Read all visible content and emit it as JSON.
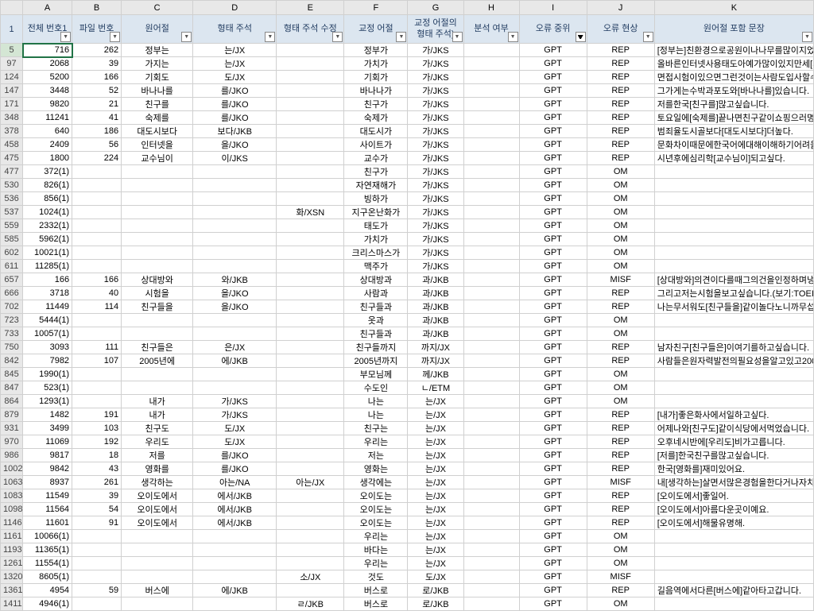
{
  "columns": {
    "letters": [
      "",
      "A",
      "B",
      "C",
      "D",
      "E",
      "F",
      "G",
      "H",
      "I",
      "J",
      "K"
    ],
    "widths": [
      28,
      62,
      62,
      90,
      105,
      85,
      80,
      70,
      70,
      85,
      85,
      200
    ],
    "headers": [
      "",
      "전체 번호1",
      "파일 번호",
      "원어절",
      "형태 주석",
      "형태 주석 수정",
      "교정 어절",
      "교정 어절의\n형태 주석)",
      "분석 여부",
      "오류 중위",
      "오류 현상",
      "원어절 포함 문장"
    ]
  },
  "selected_row": "5",
  "rows": [
    {
      "n": "1",
      "hdr": true
    },
    {
      "n": "5",
      "a": "716",
      "b": "262",
      "c": "정부는",
      "d": "는/JX",
      "f": "정부가",
      "g": "가/JKS",
      "i": "GPT",
      "j": "REP",
      "k": "[정부는]친환경으로공원이나나무를많이지었지만들이"
    },
    {
      "n": "97",
      "a": "2068",
      "b": "39",
      "c": "가지는",
      "d": "는/JX",
      "f": "가치가",
      "g": "가/JKS",
      "i": "GPT",
      "j": "REP",
      "k": "올바른인터넷사용태도아예가많이있지만세[가지는]특히"
    },
    {
      "n": "124",
      "a": "5200",
      "b": "166",
      "c": "기회도",
      "d": "도/JX",
      "f": "기회가",
      "g": "가/JKS",
      "i": "GPT",
      "j": "REP",
      "k": "면접시험이있으면그런것이는사람도입사할수없지만태"
    },
    {
      "n": "147",
      "a": "3448",
      "b": "52",
      "c": "바나나를",
      "d": "를/JKO",
      "f": "바나나가",
      "g": "가/JKS",
      "i": "GPT",
      "j": "REP",
      "k": "그가게는수박과포도와[바나나를]있습니다."
    },
    {
      "n": "171",
      "a": "9820",
      "b": "21",
      "c": "친구를",
      "d": "를/JKO",
      "f": "친구가",
      "g": "가/JKS",
      "i": "GPT",
      "j": "REP",
      "k": "저를한국[친구를]많고싶습니다."
    },
    {
      "n": "348",
      "a": "11241",
      "b": "41",
      "c": "숙제를",
      "d": "를/JKO",
      "f": "숙제가",
      "g": "가/JKS",
      "i": "GPT",
      "j": "REP",
      "k": "토요일에[숙제를]끝나면친구같이쇼핑으러명동에갑니다"
    },
    {
      "n": "378",
      "a": "640",
      "b": "186",
      "c": "대도시보다",
      "d": "보다/JKB",
      "f": "대도시가",
      "g": "가/JKS",
      "i": "GPT",
      "j": "REP",
      "k": "범죄율도시골보다[대도시보다]더높다."
    },
    {
      "n": "458",
      "a": "2409",
      "b": "56",
      "c": "인터넷을",
      "d": "을/JKO",
      "f": "사이트가",
      "g": "가/JKS",
      "i": "GPT",
      "j": "REP",
      "k": "문화차이때문에한국어에대해이해하기어려울때네비어"
    },
    {
      "n": "475",
      "a": "1800",
      "b": "224",
      "c": "교수님이",
      "d": "이/JKS",
      "f": "교수가",
      "g": "가/JKS",
      "i": "GPT",
      "j": "REP",
      "k": "시년후에심리학[교수님이]되고싶다."
    },
    {
      "n": "477",
      "a": "372(1)",
      "f": "친구가",
      "g": "가/JKS",
      "i": "GPT",
      "j": "OM"
    },
    {
      "n": "530",
      "a": "826(1)",
      "f": "자연재해가",
      "g": "가/JKS",
      "i": "GPT",
      "j": "OM"
    },
    {
      "n": "536",
      "a": "856(1)",
      "f": "빙하가",
      "g": "가/JKS",
      "i": "GPT",
      "j": "OM"
    },
    {
      "n": "537",
      "a": "1024(1)",
      "e": "화/XSN",
      "f": "지구온난화가",
      "g": "가/JKS",
      "i": "GPT",
      "j": "OM"
    },
    {
      "n": "559",
      "a": "2332(1)",
      "f": "태도가",
      "g": "가/JKS",
      "i": "GPT",
      "j": "OM"
    },
    {
      "n": "585",
      "a": "5962(1)",
      "f": "가치가",
      "g": "가/JKS",
      "i": "GPT",
      "j": "OM"
    },
    {
      "n": "602",
      "a": "10021(1)",
      "f": "크리스마스가",
      "g": "가/JKS",
      "i": "GPT",
      "j": "OM"
    },
    {
      "n": "611",
      "a": "11285(1)",
      "f": "맥주가",
      "g": "가/JKS",
      "i": "GPT",
      "j": "OM"
    },
    {
      "n": "657",
      "a": "166",
      "b": "166",
      "c": "상대방와",
      "d": "와/JKB",
      "f": "상대방과",
      "g": "과/JKB",
      "i": "GPT",
      "j": "MISF",
      "k": "[상대방와]의견이다를때그의건을인정하며냉정하게자신"
    },
    {
      "n": "666",
      "a": "3718",
      "b": "40",
      "c": "시험을",
      "d": "을/JKO",
      "f": "사람과",
      "g": "과/JKB",
      "i": "GPT",
      "j": "REP",
      "k": "그리고저는시험을보고싶습니다.(보기:TOEIC)그래서저는"
    },
    {
      "n": "702",
      "a": "11449",
      "b": "114",
      "c": "친구들을",
      "d": "을/JKO",
      "f": "친구들과",
      "g": "과/JKB",
      "i": "GPT",
      "j": "REP",
      "k": "나는무서워도[친구들을]같이놀다노니까무섭지않는다.디"
    },
    {
      "n": "723",
      "a": "5444(1)",
      "f": "옷과",
      "g": "과/JKB",
      "i": "GPT",
      "j": "OM"
    },
    {
      "n": "733",
      "a": "10057(1)",
      "f": "친구들과",
      "g": "과/JKB",
      "i": "GPT",
      "j": "OM"
    },
    {
      "n": "750",
      "a": "3093",
      "b": "111",
      "c": "친구들은",
      "d": "은/JX",
      "f": "친구들까지",
      "g": "까지/JX",
      "i": "GPT",
      "j": "REP",
      "k": "남자친구[친구들은]이여기를하고싶습니다."
    },
    {
      "n": "842",
      "a": "7982",
      "b": "107",
      "c": "2005년에",
      "d": "에/JKB",
      "f": "2005년까지",
      "g": "까지/JX",
      "i": "GPT",
      "j": "REP",
      "k": "사람들은원자력발전의필요성을알고있고2002년부터[20"
    },
    {
      "n": "845",
      "a": "1990(1)",
      "f": "부모님께",
      "g": "께/JKB",
      "i": "GPT",
      "j": "OM"
    },
    {
      "n": "847",
      "a": "523(1)",
      "f": "수도인",
      "g": "ㄴ/ETM",
      "i": "GPT",
      "j": "OM"
    },
    {
      "n": "864",
      "a": "1293(1)",
      "c": "내가",
      "d": "가/JKS",
      "f": "나는",
      "g": "는/JX",
      "i": "GPT",
      "j": "OM"
    },
    {
      "n": "879",
      "a": "1482",
      "b": "191",
      "c": "내가",
      "d": "가/JKS",
      "f": "나는",
      "g": "는/JX",
      "i": "GPT",
      "j": "REP",
      "k": "[내가]좋은화사에서일하고싶다."
    },
    {
      "n": "931",
      "a": "3499",
      "b": "103",
      "c": "친구도",
      "d": "도/JX",
      "f": "친구는",
      "g": "는/JX",
      "i": "GPT",
      "j": "REP",
      "k": "어제나와[친구도]같이식당에서먹었습니다."
    },
    {
      "n": "970",
      "a": "11069",
      "b": "192",
      "c": "우리도",
      "d": "도/JX",
      "f": "우리는",
      "g": "는/JX",
      "i": "GPT",
      "j": "REP",
      "k": "오후네시반에[우리도]비가고릅니다."
    },
    {
      "n": "986",
      "a": "9817",
      "b": "18",
      "c": "저를",
      "d": "를/JKO",
      "f": "저는",
      "g": "는/JX",
      "i": "GPT",
      "j": "REP",
      "k": "[저를]한국친구를많고싶습니다."
    },
    {
      "n": "1002",
      "a": "9842",
      "b": "43",
      "c": "영화를",
      "d": "를/JKO",
      "f": "영화는",
      "g": "는/JX",
      "i": "GPT",
      "j": "REP",
      "k": "한국[영화를]재미있어요."
    },
    {
      "n": "1063",
      "a": "8937",
      "b": "261",
      "c": "생각하는",
      "d": "아는/NA",
      "e": "아는/JX",
      "f": "생각에는",
      "g": "는/JX",
      "i": "GPT",
      "j": "MISF",
      "k": "내[생각하는]살면서많은경험을한다거나자치가가치고와"
    },
    {
      "n": "1083",
      "a": "11549",
      "b": "39",
      "c": "오이도에서",
      "d": "에서/JKB",
      "f": "오이도는",
      "g": "는/JX",
      "i": "GPT",
      "j": "REP",
      "k": "[오이도에서]좋일어."
    },
    {
      "n": "1098",
      "a": "11564",
      "b": "54",
      "c": "오이도에서",
      "d": "에서/JKB",
      "f": "오이도는",
      "g": "는/JX",
      "i": "GPT",
      "j": "REP",
      "k": "[오이도에서]아름다운곳이예요."
    },
    {
      "n": "1146",
      "a": "11601",
      "b": "91",
      "c": "오이도에서",
      "d": "에서/JKB",
      "f": "오이도는",
      "g": "는/JX",
      "i": "GPT",
      "j": "REP",
      "k": "[오이도에서]해물유명해."
    },
    {
      "n": "1161",
      "a": "10066(1)",
      "f": "우리는",
      "g": "는/JX",
      "i": "GPT",
      "j": "OM"
    },
    {
      "n": "1193",
      "a": "11365(1)",
      "f": "바다는",
      "g": "는/JX",
      "i": "GPT",
      "j": "OM"
    },
    {
      "n": "1261",
      "a": "11554(1)",
      "f": "우리는",
      "g": "는/JX",
      "i": "GPT",
      "j": "OM"
    },
    {
      "n": "1320",
      "a": "8605(1)",
      "e": "소/JX",
      "f": "것도",
      "g": "도/JX",
      "i": "GPT",
      "j": "MISF"
    },
    {
      "n": "1361",
      "a": "4954",
      "b": "59",
      "c": "버스에",
      "d": "에/JKB",
      "f": "버스로",
      "g": "로/JKB",
      "i": "GPT",
      "j": "REP",
      "k": "길음역에서다른[버스에]같아타고갑니다."
    },
    {
      "n": "1411",
      "a": "4946(1)",
      "e": "ㄹ/JKB",
      "f": "버스로",
      "g": "로/JKB",
      "i": "GPT",
      "j": "OM"
    }
  ]
}
